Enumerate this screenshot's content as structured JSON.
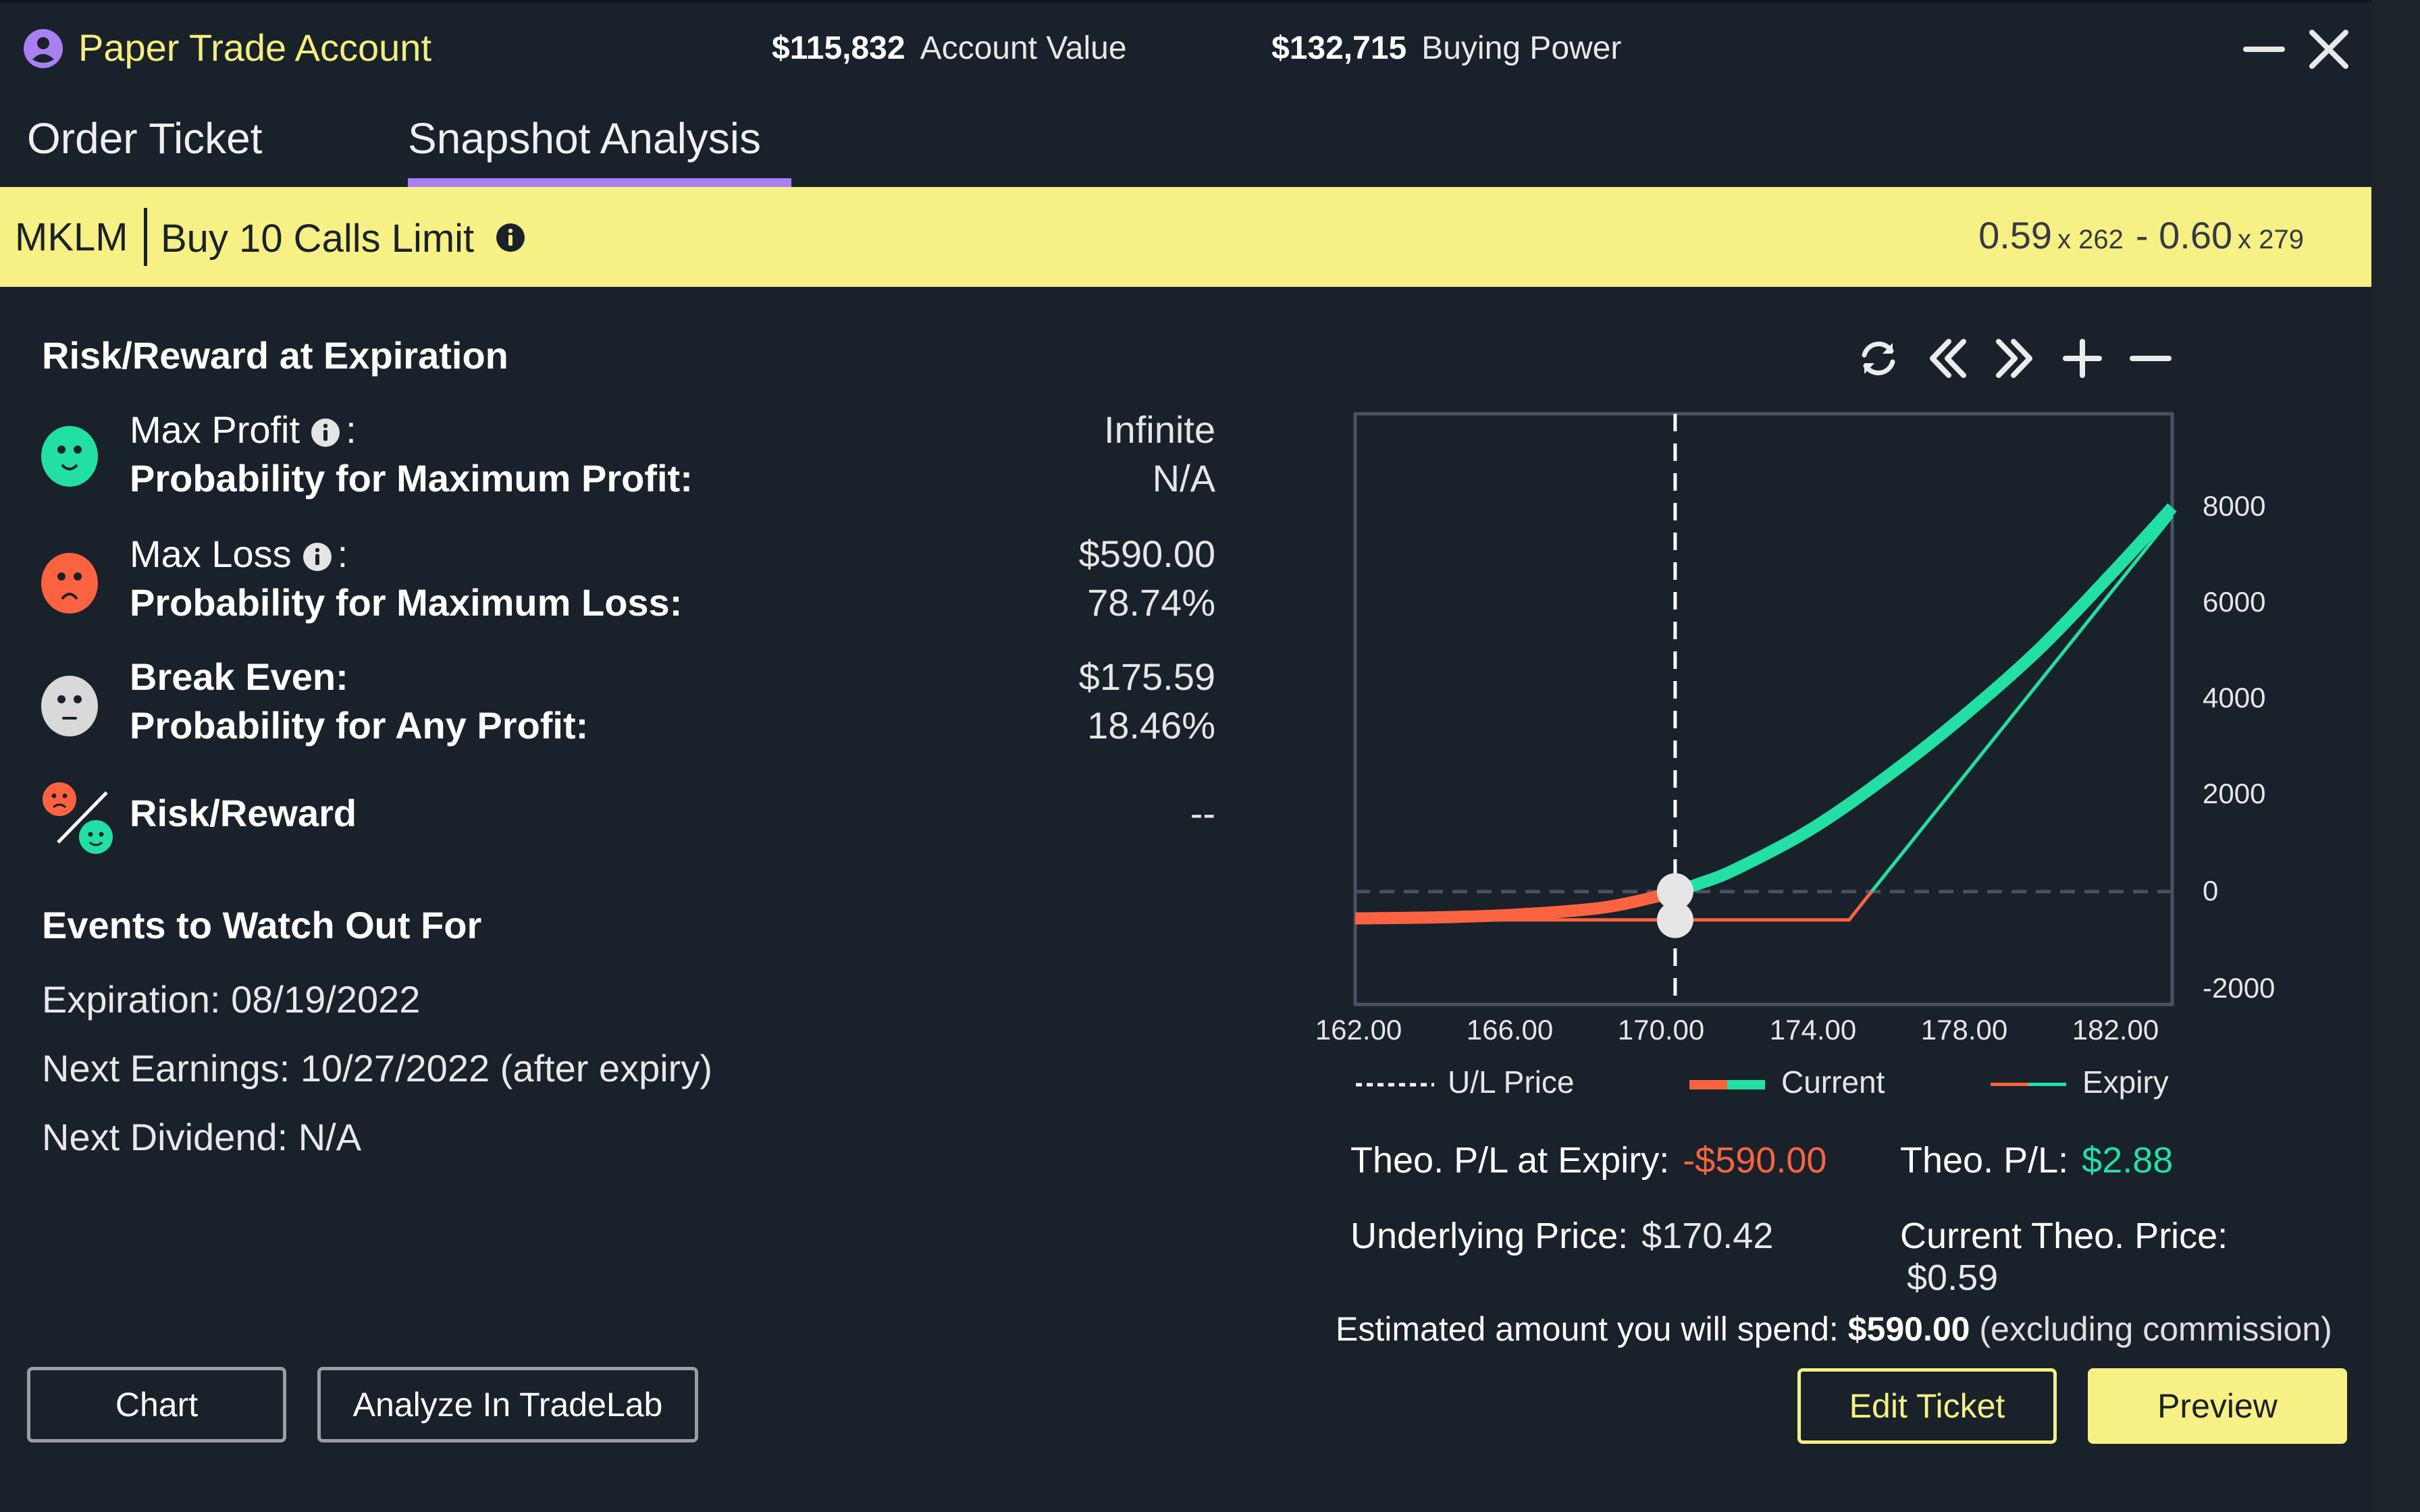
{
  "header": {
    "account_name": "Paper Trade Account",
    "account_value": "$115,832",
    "account_value_label": "Account Value",
    "buying_power": "$132,715",
    "buying_power_label": "Buying Power",
    "account_icon": "user-circle-icon",
    "minimize_icon": "minimize-icon",
    "close_icon": "close-icon"
  },
  "tabs": [
    {
      "label": "Order Ticket",
      "active": false
    },
    {
      "label": "Snapshot Analysis",
      "active": true
    }
  ],
  "order_bar": {
    "symbol": "MKLM",
    "description": "Buy 10 Calls Limit",
    "bid": "0.59",
    "bid_size": "x 262",
    "separator": "-",
    "ask": "0.60",
    "ask_size": "x 279"
  },
  "risk_reward": {
    "title": "Risk/Reward at Expiration",
    "rows": [
      {
        "icon": "happy-face-icon",
        "label": "Max Profit",
        "suffix": ":",
        "value": "Infinite",
        "sub_label": "Probability for Maximum Profit:",
        "sub_value": "N/A"
      },
      {
        "icon": "sad-face-icon",
        "label": "Max Loss",
        "suffix": ":",
        "value": "$590.00",
        "sub_label": "Probability for Maximum Loss:",
        "sub_value": "78.74%"
      },
      {
        "icon": "neutral-face-icon",
        "label": "Break Even:",
        "value": "$175.59",
        "sub_label": "Probability for Any Profit:",
        "sub_value": "18.46%"
      },
      {
        "icon": "risk-reward-ratio-icon",
        "label": "Risk/Reward",
        "value": "--"
      }
    ]
  },
  "events": {
    "title": "Events to Watch Out For",
    "items": [
      "Expiration: 08/19/2022",
      "Next Earnings: 10/27/2022 (after expiry)",
      "Next Dividend: N/A"
    ]
  },
  "chart_toolbar": [
    "refresh-icon",
    "chevrons-left-icon",
    "chevrons-right-icon",
    "plus-icon",
    "minus-icon"
  ],
  "chart_data": {
    "type": "line",
    "title": "",
    "xlabel": "",
    "ylabel": "",
    "x_ticks": [
      "162.00",
      "166.00",
      "170.00",
      "174.00",
      "178.00",
      "182.00"
    ],
    "y_ticks": [
      "8000",
      "6000",
      "4000",
      "2000",
      "0",
      "-2000"
    ],
    "xlim": [
      162,
      183.5
    ],
    "ylim": [
      -2350,
      9950
    ],
    "grid": false,
    "legend_position": "bottom",
    "reference_lines": [
      {
        "name": "U/L Price",
        "axis": "x",
        "value": 170.42,
        "style": "dashed"
      },
      {
        "name": "zero",
        "axis": "y",
        "value": 0,
        "style": "dashed"
      }
    ],
    "series": [
      {
        "name": "Current",
        "x": [
          162,
          164,
          166,
          168,
          169,
          170,
          170.42,
          171,
          172,
          174,
          176,
          178,
          180,
          182,
          183.5
        ],
        "y": [
          -560,
          -540,
          -490,
          -380,
          -270,
          -90,
          3,
          150,
          460,
          1300,
          2400,
          3650,
          5050,
          6700,
          8000
        ],
        "colors": {
          "loss": "#fb6340",
          "profit": "#22e0a4"
        }
      },
      {
        "name": "Expiry",
        "x": [
          162,
          175,
          175.59,
          183.5
        ],
        "y": [
          -590,
          -590,
          0,
          7820
        ],
        "colors": {
          "loss": "#fb6340",
          "profit": "#22e0a4"
        }
      }
    ],
    "markers": [
      {
        "x": 170.42,
        "y": 3,
        "series": "Current"
      },
      {
        "x": 170.42,
        "y": -590,
        "series": "Expiry"
      }
    ]
  },
  "legend": {
    "ul_price": "U/L Price",
    "current": "Current",
    "expiry": "Expiry"
  },
  "stats": {
    "theo_pl_expiry_label": "Theo. P/L at Expiry:",
    "theo_pl_expiry_value": "-$590.00",
    "theo_pl_label": "Theo. P/L:",
    "theo_pl_value": "$2.88",
    "underlying_label": "Underlying Price:",
    "underlying_value": "$170.42",
    "current_theo_label": "Current Theo. Price:",
    "current_theo_value": "$0.59",
    "estimate_prefix": "Estimated amount you will spend:",
    "estimate_amount": "$590.00",
    "estimate_suffix": "(excluding commission)"
  },
  "buttons": {
    "chart": "Chart",
    "analyze": "Analyze In TradeLab",
    "edit_ticket": "Edit Ticket",
    "preview": "Preview"
  },
  "colors": {
    "background": "#19212b",
    "accent_yellow": "#f7f084",
    "accent_purple": "#a97ff2",
    "profit_green": "#22e0a4",
    "loss_red": "#fb6340"
  }
}
